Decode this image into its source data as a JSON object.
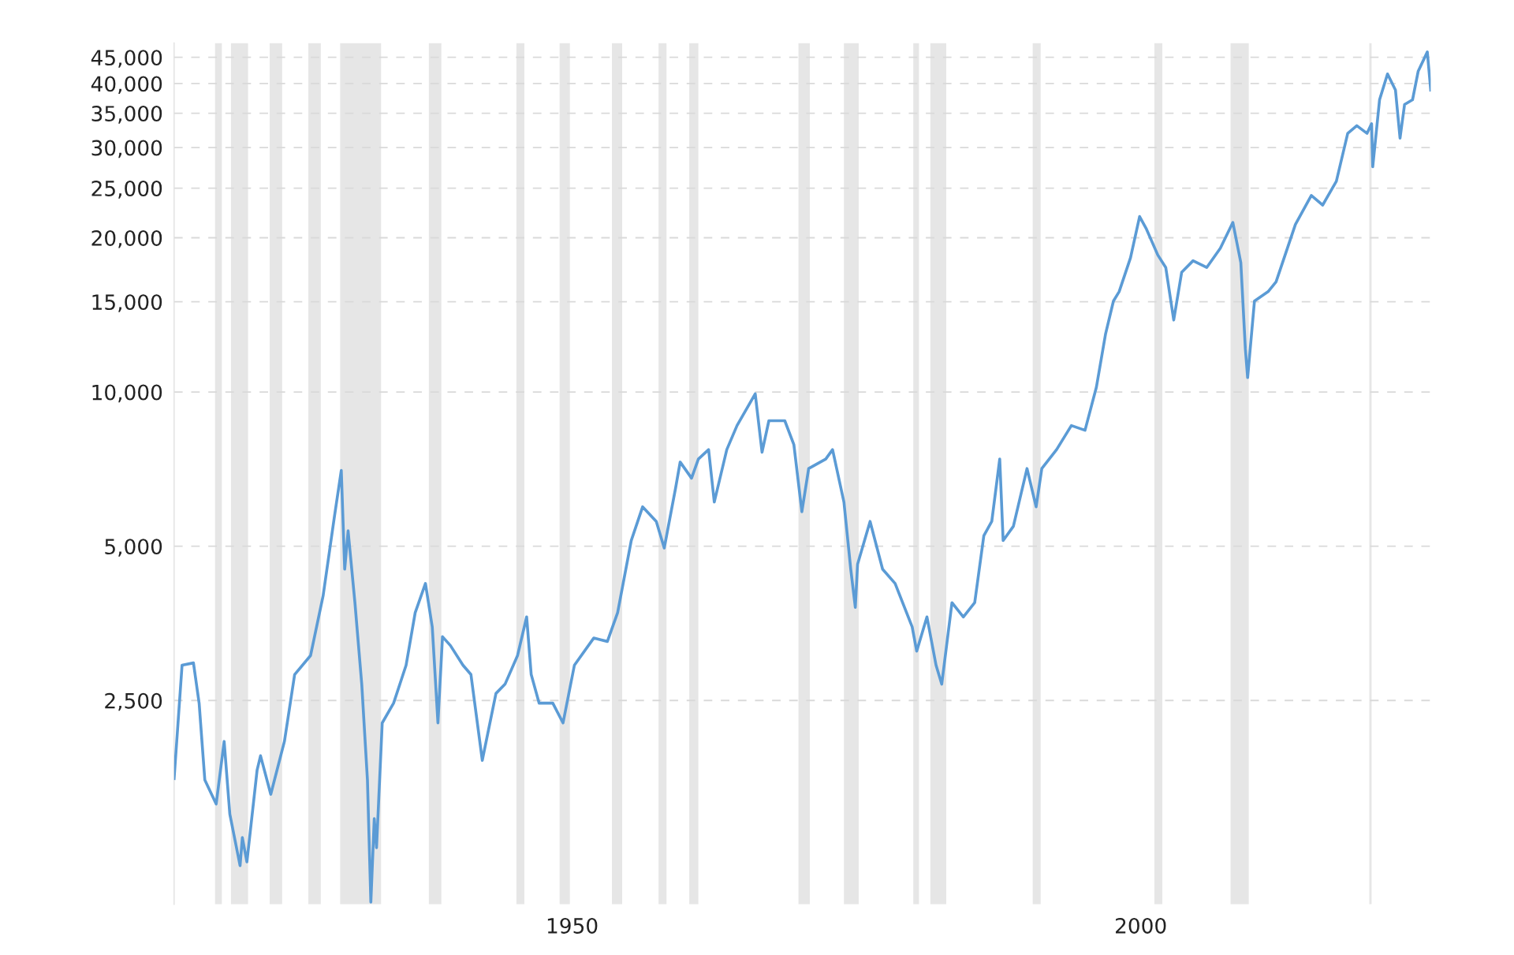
{
  "chart_data": {
    "type": "line",
    "log": "y",
    "grid": "y",
    "marker": "none",
    "line_style": "solid",
    "xlim": [
      1915.0,
      2025.5
    ],
    "xticks": [
      1950,
      2000
    ],
    "ylim": [
      1000,
      48000
    ],
    "yticks": [
      {
        "value": 2500,
        "label": "2,500"
      },
      {
        "value": 5000,
        "label": "5,000"
      },
      {
        "value": 10000,
        "label": "10,000"
      },
      {
        "value": 15000,
        "label": "15,000"
      },
      {
        "value": 20000,
        "label": "20,000"
      },
      {
        "value": 25000,
        "label": "25,000"
      },
      {
        "value": 30000,
        "label": "30,000"
      },
      {
        "value": 35000,
        "label": "35,000"
      },
      {
        "value": 40000,
        "label": "40,000"
      },
      {
        "value": 45000,
        "label": "45,000"
      }
    ],
    "bands": [
      {
        "axis": "x",
        "from": 1918.6,
        "to": 1919.2,
        "color": "#e6e6e6"
      },
      {
        "axis": "x",
        "from": 1920.0,
        "to": 1921.5,
        "color": "#e6e6e6"
      },
      {
        "axis": "x",
        "from": 1923.4,
        "to": 1924.5,
        "color": "#e6e6e6"
      },
      {
        "axis": "x",
        "from": 1926.8,
        "to": 1927.9,
        "color": "#e6e6e6"
      },
      {
        "axis": "x",
        "from": 1929.6,
        "to": 1933.2,
        "color": "#e6e6e6"
      },
      {
        "axis": "x",
        "from": 1937.4,
        "to": 1938.5,
        "color": "#e6e6e6"
      },
      {
        "axis": "x",
        "from": 1945.1,
        "to": 1945.8,
        "color": "#e6e6e6"
      },
      {
        "axis": "x",
        "from": 1948.9,
        "to": 1949.8,
        "color": "#e6e6e6"
      },
      {
        "axis": "x",
        "from": 1953.5,
        "to": 1954.4,
        "color": "#e6e6e6"
      },
      {
        "axis": "x",
        "from": 1957.6,
        "to": 1958.3,
        "color": "#e6e6e6"
      },
      {
        "axis": "x",
        "from": 1960.3,
        "to": 1961.1,
        "color": "#e6e6e6"
      },
      {
        "axis": "x",
        "from": 1969.9,
        "to": 1970.9,
        "color": "#e6e6e6"
      },
      {
        "axis": "x",
        "from": 1973.9,
        "to": 1975.2,
        "color": "#e6e6e6"
      },
      {
        "axis": "x",
        "from": 1980.0,
        "to": 1980.5,
        "color": "#e6e6e6"
      },
      {
        "axis": "x",
        "from": 1981.5,
        "to": 1982.9,
        "color": "#e6e6e6"
      },
      {
        "axis": "x",
        "from": 1990.5,
        "to": 1991.2,
        "color": "#e6e6e6"
      },
      {
        "axis": "x",
        "from": 2001.2,
        "to": 2001.9,
        "color": "#e6e6e6"
      },
      {
        "axis": "x",
        "from": 2007.9,
        "to": 2009.5,
        "color": "#e6e6e6"
      },
      {
        "axis": "x",
        "from": 2020.1,
        "to": 2020.3,
        "color": "#e6e6e6"
      }
    ],
    "series": [
      {
        "color": "#5b9bd5",
        "x": [
          1915.0,
          1915.7,
          1916.7,
          1917.2,
          1917.7,
          1918.7,
          1919.4,
          1919.9,
          1920.8,
          1921.0,
          1921.4,
          1922.3,
          1922.6,
          1923.5,
          1924.7,
          1925.6,
          1927.0,
          1928.1,
          1929.1,
          1929.7,
          1930.0,
          1930.3,
          1930.9,
          1931.5,
          1932.0,
          1932.3,
          1932.6,
          1932.8,
          1933.3,
          1934.3,
          1935.4,
          1936.2,
          1937.1,
          1937.7,
          1938.2,
          1938.6,
          1939.3,
          1940.4,
          1941.1,
          1942.1,
          1943.3,
          1944.1,
          1945.2,
          1946.0,
          1946.4,
          1947.1,
          1948.3,
          1949.2,
          1950.2,
          1951.9,
          1953.1,
          1954.0,
          1955.2,
          1956.2,
          1957.4,
          1958.1,
          1959.1,
          1959.5,
          1960.5,
          1961.1,
          1962.0,
          1962.5,
          1963.6,
          1964.5,
          1966.1,
          1966.7,
          1967.3,
          1968.7,
          1969.5,
          1970.2,
          1970.8,
          1972.3,
          1972.9,
          1973.9,
          1974.5,
          1974.9,
          1975.1,
          1976.2,
          1977.3,
          1978.4,
          1979.9,
          1980.3,
          1981.2,
          1982.0,
          1982.5,
          1983.4,
          1984.4,
          1985.4,
          1986.2,
          1986.9,
          1987.6,
          1987.9,
          1988.8,
          1990.0,
          1990.8,
          1991.3,
          1992.6,
          1993.9,
          1995.1,
          1996.1,
          1996.9,
          1997.6,
          1998.1,
          1999.1,
          1999.9,
          2000.5,
          2001.5,
          2002.2,
          2002.9,
          2003.6,
          2004.6,
          2005.8,
          2007.0,
          2008.1,
          2008.8,
          2009.2,
          2009.4,
          2010.0,
          2011.2,
          2011.9,
          2013.6,
          2015.0,
          2016.0,
          2017.2,
          2018.2,
          2019.0,
          2019.9,
          2020.3,
          2020.4,
          2021.0,
          2021.7,
          2022.4,
          2022.8,
          2023.2,
          2023.9,
          2024.4,
          2025.2,
          2025.5
        ],
        "values": [
          1760,
          2930,
          2960,
          2470,
          1750,
          1570,
          2080,
          1500,
          1190,
          1350,
          1210,
          1830,
          1950,
          1640,
          2080,
          2810,
          3060,
          4000,
          5720,
          7030,
          4510,
          5360,
          3880,
          2690,
          1750,
          1010,
          1470,
          1290,
          2260,
          2470,
          2930,
          3710,
          4230,
          3480,
          2260,
          3330,
          3200,
          2930,
          2810,
          1910,
          2580,
          2690,
          3060,
          3640,
          2810,
          2470,
          2470,
          2260,
          2930,
          3310,
          3260,
          3710,
          5130,
          5970,
          5590,
          4960,
          6500,
          7300,
          6790,
          7400,
          7720,
          6100,
          7720,
          8600,
          9920,
          7630,
          8790,
          8790,
          7890,
          5840,
          7090,
          7400,
          7720,
          6100,
          4510,
          3800,
          4610,
          5590,
          4510,
          4230,
          3480,
          3120,
          3640,
          2930,
          2690,
          3880,
          3640,
          3880,
          5240,
          5590,
          7400,
          5130,
          5470,
          7090,
          5970,
          7090,
          7720,
          8600,
          8420,
          10220,
          12960,
          15050,
          15700,
          18280,
          22000,
          20800,
          18510,
          17500,
          13820,
          17130,
          18040,
          17500,
          19080,
          21430,
          17890,
          12140,
          10670,
          15050,
          15700,
          16410,
          21240,
          24190,
          23170,
          25780,
          31980,
          33100,
          31980,
          33400,
          27510,
          37180,
          41760,
          38830,
          31300,
          36400,
          37180,
          42300,
          46100,
          38830
        ]
      }
    ]
  }
}
